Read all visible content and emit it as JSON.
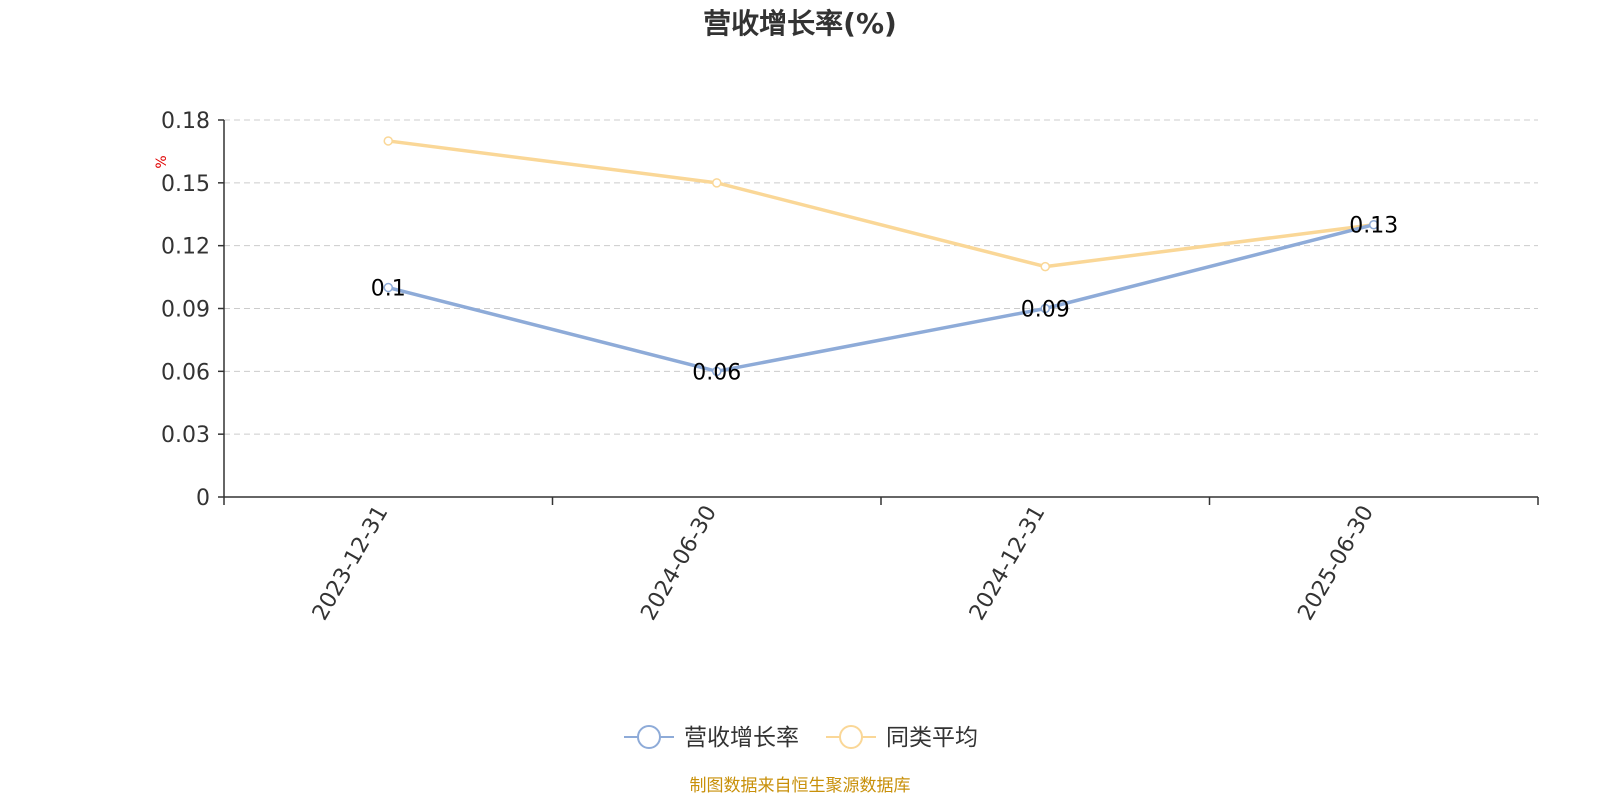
{
  "chart_data": {
    "type": "line",
    "title": "营收增长率(%)",
    "ylabel": "%",
    "xlabel": "",
    "categories": [
      "2023-12-31",
      "2024-06-30",
      "2024-12-31",
      "2025-06-30"
    ],
    "series": [
      {
        "name": "营收增长率",
        "values": [
          0.1,
          0.06,
          0.09,
          0.13
        ],
        "color": "#8eabd8",
        "show_labels": true
      },
      {
        "name": "同类平均",
        "values": [
          0.17,
          0.15,
          0.11,
          0.13
        ],
        "color": "#fad797",
        "show_labels": false
      }
    ],
    "data_labels": [
      "0.1",
      "0.06",
      "0.09",
      "0.13"
    ],
    "ylim": [
      0,
      0.18
    ],
    "yticks": [
      "0",
      "0.03",
      "0.06",
      "0.09",
      "0.12",
      "0.15",
      "0.18"
    ],
    "grid": true,
    "legend_position": "bottom-center"
  },
  "source_note": "制图数据来自恒生聚源数据库"
}
